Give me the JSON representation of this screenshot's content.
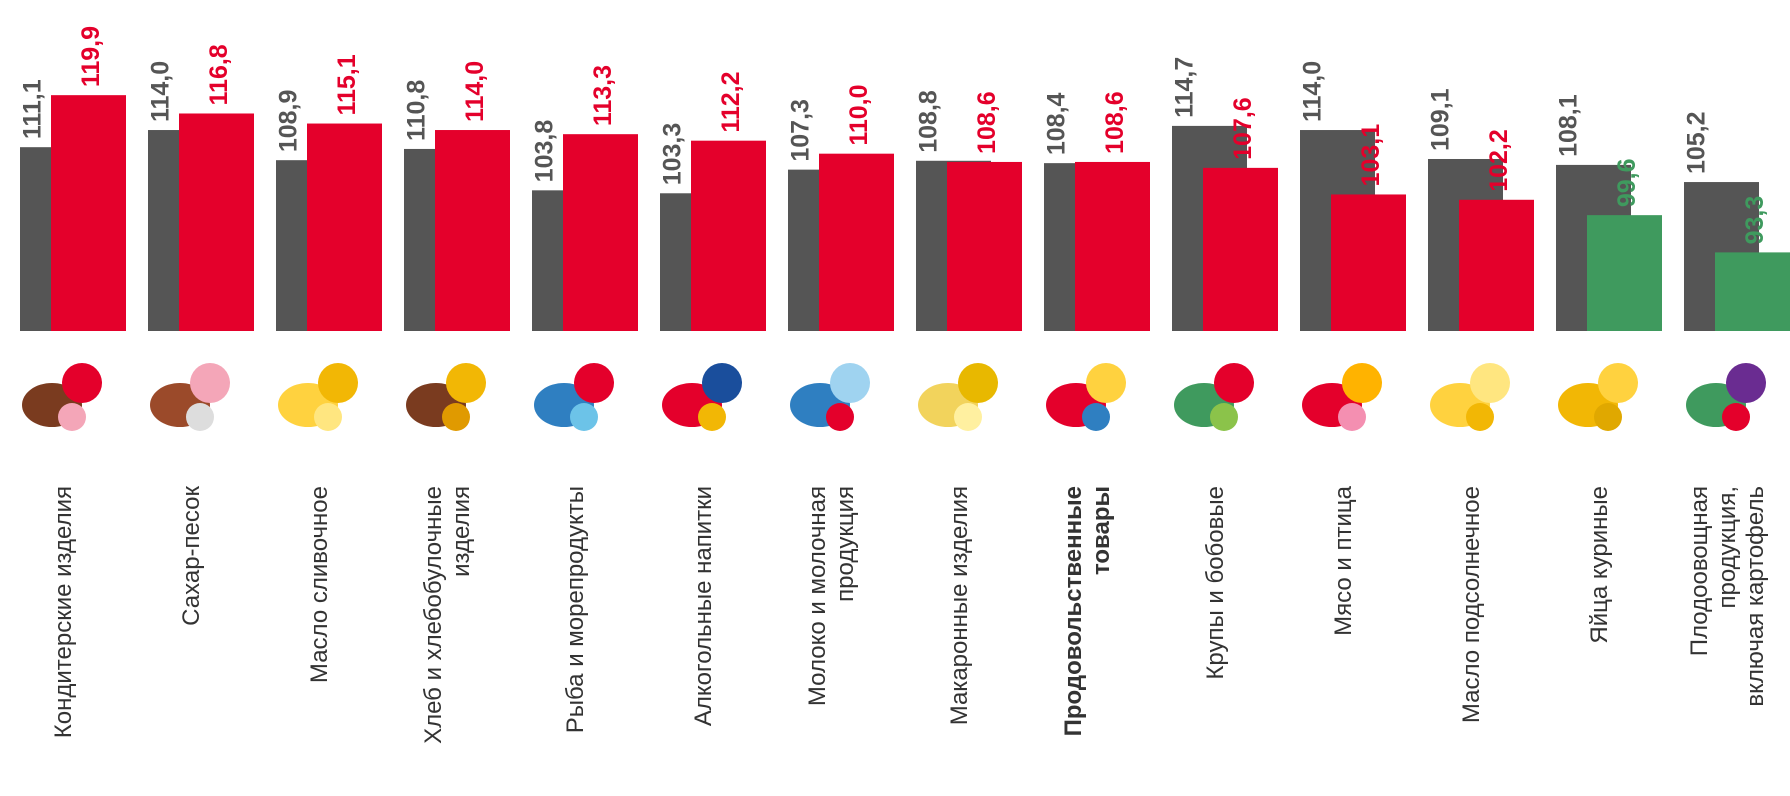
{
  "chart_data": {
    "type": "bar",
    "categories": [
      "Кондитерские изделия",
      "Сахар-песок",
      "Масло сливочное",
      "Хлеб и хлебобулочные\nизделия",
      "Рыба и морепродукты",
      "Алкогольные напитки",
      "Молоко и молочная\nпродукция",
      "Макаронные изделия",
      "Продовольственные\nтовары",
      "Крупы и бобовые",
      "Мясо и птица",
      "Масло подсолнечное",
      "Яйца куриные",
      "Плодоовощная\nпродукция,\nвключая картофель"
    ],
    "bold_categories": [
      8
    ],
    "series": [
      {
        "color": "#555555",
        "values": [
          111.1,
          114.0,
          108.9,
          110.8,
          103.8,
          103.3,
          107.3,
          108.8,
          108.4,
          114.7,
          114.0,
          109.1,
          108.1,
          105.2
        ],
        "value_labels": [
          "111,1",
          "114,0",
          "108,9",
          "110,8",
          "103,8",
          "103,3",
          "107,3",
          "108,8",
          "108,4",
          "114,7",
          "114,0",
          "109,1",
          "108,1",
          "105,2"
        ]
      },
      {
        "color": "#e4002b",
        "colors": [
          "#e4002b",
          "#e4002b",
          "#e4002b",
          "#e4002b",
          "#e4002b",
          "#e4002b",
          "#e4002b",
          "#e4002b",
          "#e4002b",
          "#e4002b",
          "#e4002b",
          "#e4002b",
          "#3f9a5e",
          "#3f9a5e"
        ],
        "values": [
          119.9,
          116.8,
          115.1,
          114.0,
          113.3,
          112.2,
          110.0,
          108.6,
          108.6,
          107.6,
          103.1,
          102.2,
          99.6,
          93.3
        ],
        "value_labels": [
          "119,9",
          "116,8",
          "115,1",
          "114,0",
          "113,3",
          "112,2",
          "110,0",
          "108,6",
          "108,6",
          "107,6",
          "103,1",
          "102,2",
          "99,6",
          "93,3"
        ]
      }
    ],
    "ylim": [
      80,
      136
    ]
  }
}
